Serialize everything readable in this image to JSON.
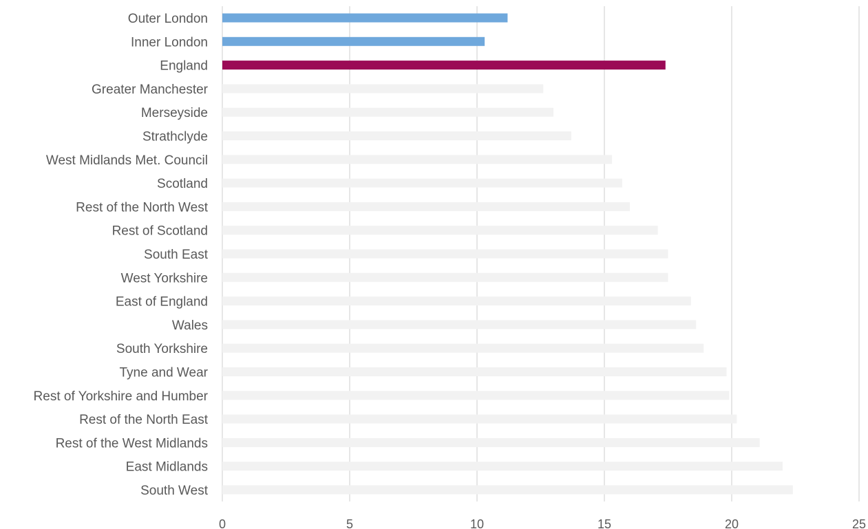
{
  "chart_data": {
    "type": "bar",
    "orientation": "horizontal",
    "categories": [
      "Outer London",
      "Inner London",
      "England",
      "Greater Manchester",
      "Merseyside",
      "Strathclyde",
      "West Midlands Met. Council",
      "Scotland",
      "Rest of the North West",
      "Rest of Scotland",
      "South East",
      "West Yorkshire",
      "East of England",
      "Wales",
      "South Yorkshire",
      "Tyne and Wear",
      "Rest of Yorkshire and Humber",
      "Rest of the North East",
      "Rest of the West Midlands",
      "East Midlands",
      "South West"
    ],
    "values": [
      11.2,
      10.3,
      17.4,
      12.6,
      13.0,
      13.7,
      15.3,
      15.7,
      16.0,
      17.1,
      17.5,
      17.5,
      18.4,
      18.6,
      18.9,
      19.8,
      19.9,
      20.2,
      21.1,
      22.0,
      22.4
    ],
    "bar_colors": [
      "#6fa8dc",
      "#6fa8dc",
      "#9b0a56",
      "#f2f2f2",
      "#f2f2f2",
      "#f2f2f2",
      "#f2f2f2",
      "#f2f2f2",
      "#f2f2f2",
      "#f2f2f2",
      "#f2f2f2",
      "#f2f2f2",
      "#f2f2f2",
      "#f2f2f2",
      "#f2f2f2",
      "#f2f2f2",
      "#f2f2f2",
      "#f2f2f2",
      "#f2f2f2",
      "#f2f2f2",
      "#f2f2f2"
    ],
    "xlim": [
      0,
      25
    ],
    "xticks": [
      0,
      5,
      10,
      15,
      20,
      25
    ],
    "xtick_labels": [
      "0",
      "5",
      "10",
      "15",
      "20",
      "25"
    ],
    "title": "",
    "xlabel": "",
    "ylabel": "",
    "grid": "vertical",
    "colors": {
      "grid": "#d9d9d9",
      "label_text": "#595959"
    }
  }
}
